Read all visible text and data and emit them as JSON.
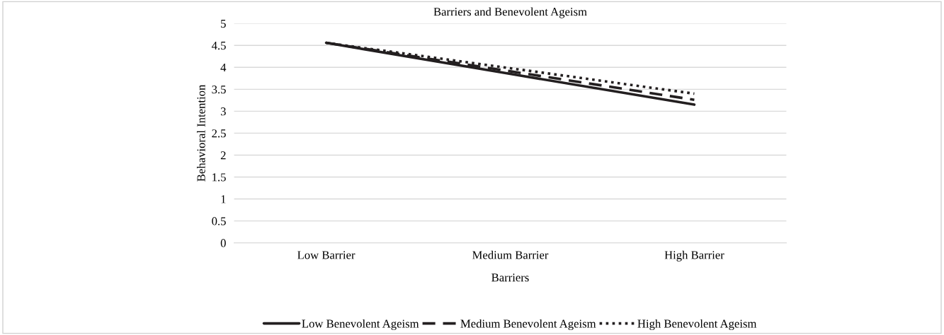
{
  "chart_data": {
    "type": "line",
    "title": "Barriers and Benevolent Ageism",
    "xlabel": "Barriers",
    "ylabel": "Behavioral Intention",
    "categories": [
      "Low Barrier",
      "Medium Barrier",
      "High Barrier"
    ],
    "series": [
      {
        "name": "Low Benevolent Ageism",
        "color": "#231f20",
        "line_style": "solid",
        "values": [
          4.56,
          3.85,
          3.15
        ]
      },
      {
        "name": "Medium Benevolent Ageism",
        "color": "#231f20",
        "line_style": "dashed",
        "values": [
          4.56,
          3.91,
          3.26
        ]
      },
      {
        "name": "High Benevolent Ageism",
        "color": "#231f20",
        "line_style": "dotted",
        "values": [
          4.56,
          3.98,
          3.4
        ]
      }
    ],
    "ylim": [
      0,
      5
    ],
    "yticks": [
      0,
      0.5,
      1,
      1.5,
      2,
      2.5,
      3,
      3.5,
      4,
      4.5,
      5
    ],
    "grid": "y",
    "legend": "bottom",
    "marker": "none"
  }
}
